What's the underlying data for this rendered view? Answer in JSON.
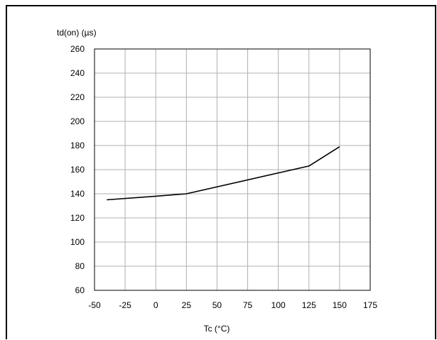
{
  "caption_fragment": "",
  "chart_data": {
    "type": "line",
    "title": "",
    "ylabel": "td(on) (µs)",
    "xlabel": "Tc (°C)",
    "xlim": [
      -50,
      175
    ],
    "ylim": [
      60,
      260
    ],
    "x_ticks": [
      "-50",
      "-25",
      "0",
      "25",
      "50",
      "75",
      "100",
      "125",
      "150",
      "175"
    ],
    "y_ticks": [
      "260",
      "240",
      "220",
      "200",
      "180",
      "160",
      "140",
      "120",
      "100",
      "80",
      "60"
    ],
    "grid": true,
    "series": [
      {
        "x": [
          -40,
          0,
          25,
          125,
          150
        ],
        "y": [
          135,
          138,
          140,
          163,
          179
        ]
      }
    ],
    "colors": {
      "line": "#000000",
      "grid": "#b0b0b0",
      "axes": "#000000"
    }
  }
}
